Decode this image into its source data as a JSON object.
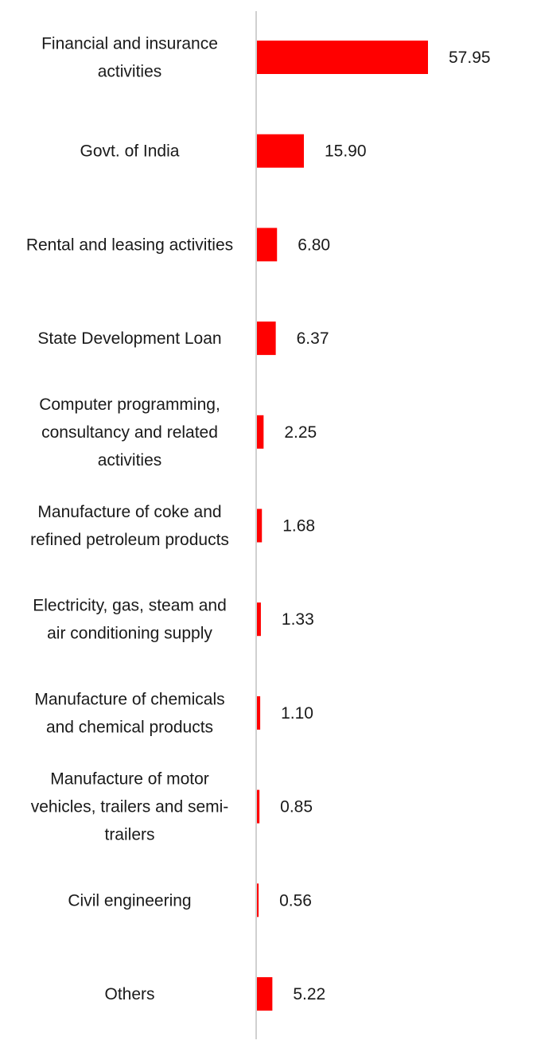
{
  "chart_data": {
    "type": "bar",
    "orientation": "horizontal",
    "title": "",
    "xlabel": "",
    "ylabel": "",
    "categories": [
      [
        "Financial and insurance",
        "activities"
      ],
      [
        "Govt. of India"
      ],
      [
        "Rental and leasing activities"
      ],
      [
        "State Development Loan"
      ],
      [
        "Computer programming,",
        "consultancy and related",
        "activities"
      ],
      [
        "Manufacture of coke and",
        "refined petroleum products"
      ],
      [
        "Electricity, gas, steam and",
        "air conditioning supply"
      ],
      [
        "Manufacture of chemicals",
        "and chemical products"
      ],
      [
        "Manufacture of motor",
        "vehicles, trailers and semi-",
        "trailers"
      ],
      [
        "Civil engineering"
      ],
      [
        "Others"
      ]
    ],
    "values": [
      57.95,
      15.9,
      6.8,
      6.37,
      2.25,
      1.68,
      1.33,
      1.1,
      0.85,
      0.56,
      5.22
    ],
    "value_labels": [
      "57.95",
      "15.90",
      "6.80",
      "6.37",
      "2.25",
      "1.68",
      "1.33",
      "1.10",
      "0.85",
      "0.56",
      "5.22"
    ],
    "xlim": [
      0,
      60
    ],
    "grid": false,
    "legend": "none",
    "bar_color": "#ff0000",
    "axis_color": "#d0d0d0"
  }
}
